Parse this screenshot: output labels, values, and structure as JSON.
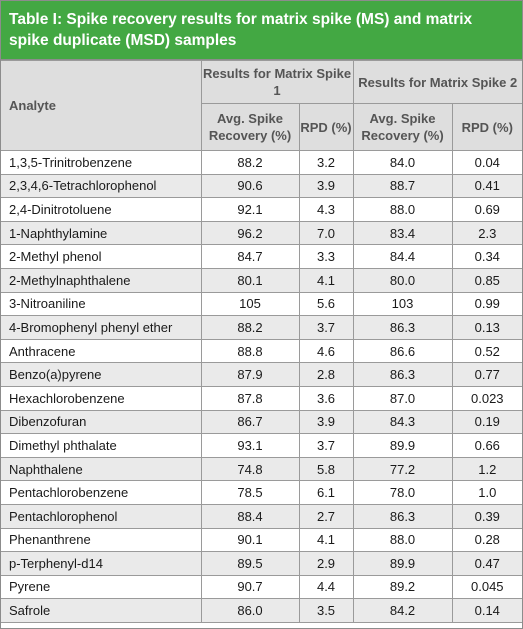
{
  "title": "Table I: Spike recovery results for matrix spike (MS) and matrix spike duplicate (MSD) samples",
  "header": {
    "analyte": "Analyte",
    "group1": "Results for Matrix Spike 1",
    "group2": "Results for Matrix Spike 2",
    "avg_recovery": "Avg. Spike Recovery (%)",
    "rpd": "RPD (%)"
  },
  "colors": {
    "title_bg": "#43a843",
    "header_bg": "#dedede",
    "stripe": "#eaeaea"
  },
  "rows": [
    {
      "analyte": "1,3,5-Trinitrobenzene",
      "ms_recovery": "88.2",
      "ms_rpd": "3.2",
      "msd_recovery": "84.0",
      "msd_rpd": "0.04"
    },
    {
      "analyte": "2,3,4,6-Tetrachlorophenol",
      "ms_recovery": "90.6",
      "ms_rpd": "3.9",
      "msd_recovery": "88.7",
      "msd_rpd": "0.41"
    },
    {
      "analyte": "2,4-Dinitrotoluene",
      "ms_recovery": "92.1",
      "ms_rpd": "4.3",
      "msd_recovery": "88.0",
      "msd_rpd": "0.69"
    },
    {
      "analyte": "1-Naphthylamine",
      "ms_recovery": "96.2",
      "ms_rpd": "7.0",
      "msd_recovery": "83.4",
      "msd_rpd": "2.3"
    },
    {
      "analyte": "2-Methyl phenol",
      "ms_recovery": "84.7",
      "ms_rpd": "3.3",
      "msd_recovery": "84.4",
      "msd_rpd": "0.34"
    },
    {
      "analyte": "2-Methylnaphthalene",
      "ms_recovery": "80.1",
      "ms_rpd": "4.1",
      "msd_recovery": "80.0",
      "msd_rpd": "0.85"
    },
    {
      "analyte": "3-Nitroaniline",
      "ms_recovery": "105",
      "ms_rpd": "5.6",
      "msd_recovery": "103",
      "msd_rpd": "0.99"
    },
    {
      "analyte": "4-Bromophenyl phenyl ether",
      "ms_recovery": "88.2",
      "ms_rpd": "3.7",
      "msd_recovery": "86.3",
      "msd_rpd": "0.13"
    },
    {
      "analyte": "Anthracene",
      "ms_recovery": "88.8",
      "ms_rpd": "4.6",
      "msd_recovery": "86.6",
      "msd_rpd": "0.52"
    },
    {
      "analyte": "Benzo(a)pyrene",
      "ms_recovery": "87.9",
      "ms_rpd": "2.8",
      "msd_recovery": "86.3",
      "msd_rpd": "0.77"
    },
    {
      "analyte": "Hexachlorobenzene",
      "ms_recovery": "87.8",
      "ms_rpd": "3.6",
      "msd_recovery": "87.0",
      "msd_rpd": "0.023"
    },
    {
      "analyte": "Dibenzofuran",
      "ms_recovery": "86.7",
      "ms_rpd": "3.9",
      "msd_recovery": "84.3",
      "msd_rpd": "0.19"
    },
    {
      "analyte": "Dimethyl phthalate",
      "ms_recovery": "93.1",
      "ms_rpd": "3.7",
      "msd_recovery": "89.9",
      "msd_rpd": "0.66"
    },
    {
      "analyte": "Naphthalene",
      "ms_recovery": "74.8",
      "ms_rpd": "5.8",
      "msd_recovery": "77.2",
      "msd_rpd": "1.2"
    },
    {
      "analyte": "Pentachlorobenzene",
      "ms_recovery": "78.5",
      "ms_rpd": "6.1",
      "msd_recovery": "78.0",
      "msd_rpd": "1.0"
    },
    {
      "analyte": "Pentachlorophenol",
      "ms_recovery": "88.4",
      "ms_rpd": "2.7",
      "msd_recovery": "86.3",
      "msd_rpd": "0.39"
    },
    {
      "analyte": "Phenanthrene",
      "ms_recovery": "90.1",
      "ms_rpd": "4.1",
      "msd_recovery": "88.0",
      "msd_rpd": "0.28"
    },
    {
      "analyte": "p-Terphenyl-d14",
      "ms_recovery": "89.5",
      "ms_rpd": "2.9",
      "msd_recovery": "89.9",
      "msd_rpd": "0.47"
    },
    {
      "analyte": "Pyrene",
      "ms_recovery": "90.7",
      "ms_rpd": "4.4",
      "msd_recovery": "89.2",
      "msd_rpd": "0.045"
    },
    {
      "analyte": "Safrole",
      "ms_recovery": "86.0",
      "ms_rpd": "3.5",
      "msd_recovery": "84.2",
      "msd_rpd": "0.14"
    }
  ]
}
